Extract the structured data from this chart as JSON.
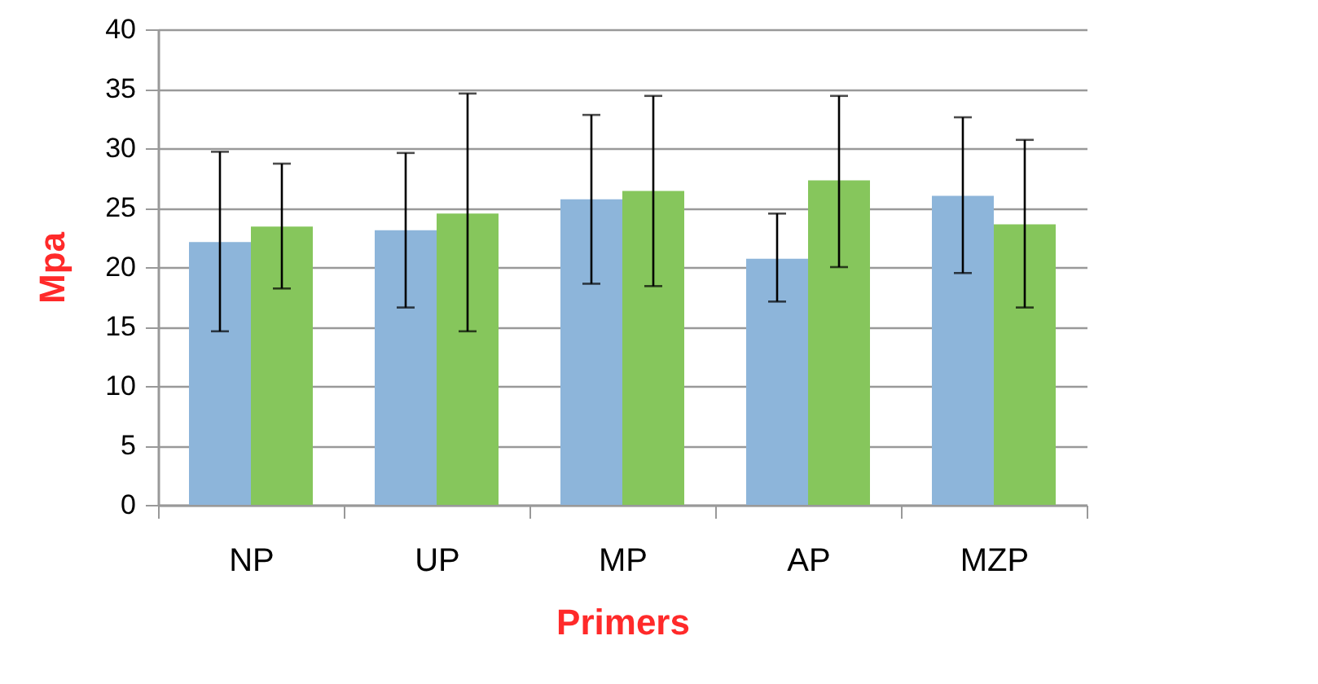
{
  "chart_data": {
    "type": "bar",
    "xlabel": "Primers",
    "ylabel": "Mpa",
    "categories": [
      "NP",
      "UP",
      "MP",
      "AP",
      "MZP"
    ],
    "series": [
      {
        "color": "#8db5da",
        "values": [
          22.1,
          23.1,
          25.7,
          20.7,
          26.0
        ],
        "errors": [
          [
            14.6,
            29.7
          ],
          [
            16.6,
            29.6
          ],
          [
            18.6,
            32.8
          ],
          [
            17.1,
            24.5
          ],
          [
            19.5,
            32.6
          ]
        ]
      },
      {
        "color": "#86c65c",
        "values": [
          23.4,
          24.5,
          26.4,
          27.3,
          23.6
        ],
        "errors": [
          [
            18.2,
            28.7
          ],
          [
            14.6,
            34.6
          ],
          [
            18.4,
            34.4
          ],
          [
            20.0,
            34.4
          ],
          [
            16.6,
            30.7
          ]
        ]
      }
    ],
    "ylim": [
      0,
      40
    ],
    "yticks": [
      0,
      5,
      10,
      15,
      20,
      25,
      30,
      35,
      40
    ],
    "grid": "y"
  }
}
